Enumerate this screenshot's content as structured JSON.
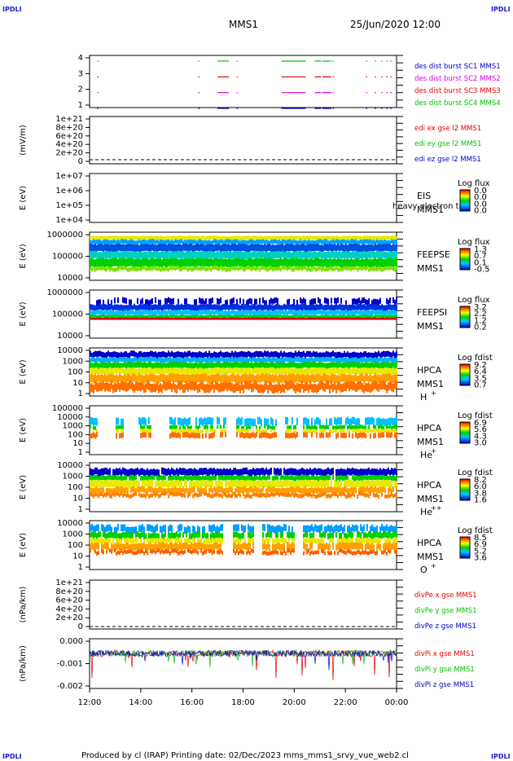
{
  "header": {
    "corner_left_top": "IPDLI",
    "corner_right_top": "IPDLI",
    "corner_left_bottom": "IPDLI",
    "corner_right_bottom": "IPDLI",
    "mission": "MMS1",
    "datetime": "25/Jun/2020 12:00"
  },
  "footer": {
    "text": "Produced by cl (IRAP)   Printing date: 02/Dec/2023   mms_mms1_srvy_vue_web2.cl"
  },
  "colors": {
    "red": "#e00000",
    "green": "#00c000",
    "blue": "#0000c8",
    "magenta": "#e000e0"
  },
  "chart_data": [
    {
      "type": "line",
      "panel": "burst",
      "yticks": [
        "4",
        "3",
        "2",
        "1"
      ],
      "legend": [
        {
          "name": "des dist burst SC1 MMS1",
          "color": "#0000c8"
        },
        {
          "name": "des dist burst SC2 MMS2",
          "color": "#e000e0"
        },
        {
          "name": "des dist burst SC3 MMS3",
          "color": "#e00000"
        },
        {
          "name": "des dist burst SC4 MMS4",
          "color": "#00c000"
        }
      ],
      "segments_hours": [
        [
          12.3,
          12.35
        ],
        [
          16.25,
          16.3
        ],
        [
          17.0,
          17.45
        ],
        [
          17.75,
          17.8
        ],
        [
          19.5,
          20.45
        ],
        [
          20.8,
          21.05
        ],
        [
          21.1,
          21.45
        ],
        [
          21.5,
          21.55
        ],
        [
          22.8,
          22.85
        ],
        [
          23.15,
          23.2
        ],
        [
          23.4,
          23.45
        ],
        [
          23.6,
          23.65
        ],
        [
          23.75,
          23.8
        ]
      ]
    },
    {
      "type": "line",
      "panel": "edi",
      "ylabel": "(mV/m)",
      "yticks": [
        "1e+21",
        "8e+20",
        "6e+20",
        "4e+20",
        "2e+20",
        "0"
      ],
      "legend": [
        {
          "name": "edi ex gse l2 MMS1",
          "color": "#e00000"
        },
        {
          "name": "edi ey gse l2 MMS1",
          "color": "#00c000"
        },
        {
          "name": "edi ez gse l2 MMS1",
          "color": "#0000c8"
        }
      ]
    },
    {
      "type": "heatmap",
      "panel": "eis",
      "ylabel": "E (eV)",
      "yticks": [
        "1e+07",
        "1e+06",
        "1e+05",
        "1e+04"
      ],
      "instrument": "EIS",
      "sc": "MMS1",
      "overlay": "heavy electron to",
      "cbar_title": "Log flux",
      "cbar_ticks": [
        "0.0",
        "0.0",
        "0.0",
        "0.0"
      ]
    },
    {
      "type": "heatmap",
      "panel": "feepse",
      "ylabel": "E (eV)",
      "yticks": [
        "1000000",
        "100000",
        "10000"
      ],
      "instrument": "FEEPSE",
      "sc": "MMS1",
      "cbar_title": "Log flux",
      "cbar_ticks": [
        "1.3",
        "0.7",
        "0.1",
        "-0.5"
      ]
    },
    {
      "type": "heatmap",
      "panel": "feepsi",
      "ylabel": "E (eV)",
      "yticks": [
        "1000000",
        "100000",
        "10000"
      ],
      "instrument": "FEEPSI",
      "sc": "MMS1",
      "cbar_title": "Log flux",
      "cbar_ticks": [
        "3.2",
        "2.2",
        "1.2",
        "0.2"
      ]
    },
    {
      "type": "heatmap",
      "panel": "hpca_h",
      "ylabel": "E (eV)",
      "yticks": [
        "10000",
        "1000",
        "100",
        "10",
        "1"
      ],
      "instrument": "HPCA",
      "sc": "MMS1",
      "species": "H",
      "charge": "+",
      "cbar_title": "Log fdist",
      "cbar_ticks": [
        "9.2",
        "6.4",
        "3.5",
        "0.7"
      ]
    },
    {
      "type": "heatmap",
      "panel": "hpca_he",
      "ylabel": "E (eV)",
      "yticks": [
        "100000",
        "10000",
        "1000",
        "100",
        "10",
        "1"
      ],
      "instrument": "HPCA",
      "sc": "MMS1",
      "species": "He",
      "charge": "+",
      "cbar_title": "Log fdist",
      "cbar_ticks": [
        "6.9",
        "5.6",
        "4.3",
        "3.0"
      ]
    },
    {
      "type": "heatmap",
      "panel": "hpca_hepp",
      "ylabel": "E (eV)",
      "yticks": [
        "10000",
        "1000",
        "100",
        "10",
        "1"
      ],
      "instrument": "HPCA",
      "sc": "MMS1",
      "species": "He",
      "charge": "++",
      "cbar_title": "Log fdist",
      "cbar_ticks": [
        "8.2",
        "6.0",
        "3.8",
        "1.6"
      ]
    },
    {
      "type": "heatmap",
      "panel": "hpca_o",
      "ylabel": "E (eV)",
      "yticks": [
        "10000",
        "1000",
        "100",
        "10",
        "1"
      ],
      "instrument": "HPCA",
      "sc": "MMS1",
      "species": "O",
      "charge": "+",
      "cbar_title": "Log fdist",
      "cbar_ticks": [
        "8.5",
        "6.9",
        "5.2",
        "3.6"
      ]
    },
    {
      "type": "line",
      "panel": "divpe",
      "ylabel": "(nPa/km)",
      "yticks": [
        "1e+21",
        "8e+20",
        "6e+20",
        "4e+20",
        "2e+20",
        "0"
      ],
      "legend": [
        {
          "name": "divPe x gse MMS1",
          "color": "#e00000"
        },
        {
          "name": "divPe y gse MMS1",
          "color": "#00c000"
        },
        {
          "name": "divPe z gse MMS1",
          "color": "#0000c8"
        }
      ]
    },
    {
      "type": "line",
      "panel": "divpi",
      "ylabel": "(nPa/km)",
      "yticks": [
        "0.000",
        "-0.001",
        "-0.002"
      ],
      "legend": [
        {
          "name": "divPi x gse MMS1",
          "color": "#e00000"
        },
        {
          "name": "divPi y gse MMS1",
          "color": "#00c000"
        },
        {
          "name": "divPi z gse MMS1",
          "color": "#0000c8"
        }
      ]
    }
  ],
  "xaxis": {
    "ticks": [
      "12:00",
      "14:00",
      "16:00",
      "18:00",
      "20:00",
      "22:00",
      "00:00"
    ],
    "range_hours": [
      12,
      24
    ]
  }
}
